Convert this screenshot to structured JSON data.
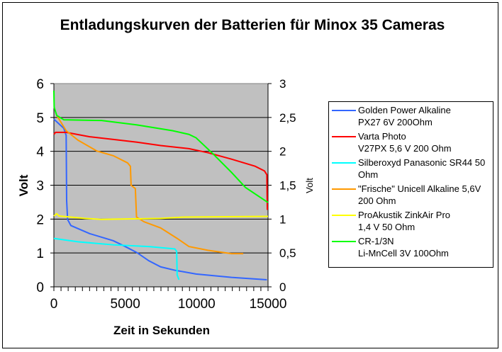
{
  "chart_data": {
    "type": "line",
    "title": "Entladungskurven der Batterien für Minox 35 Cameras",
    "xlabel": "Zeit in Sekunden",
    "ylabel": "Volt",
    "y2label": "Volt",
    "xlim": [
      0,
      15000
    ],
    "ylim": [
      0,
      6
    ],
    "y2lim": [
      0,
      3
    ],
    "xticks": [
      "0",
      "5000",
      "10000",
      "15000"
    ],
    "xtick_values": [
      0,
      5000,
      10000,
      15000
    ],
    "yticks": [
      "0",
      "1",
      "2",
      "3",
      "4",
      "5",
      "6"
    ],
    "y2ticks": [
      "0",
      "0,5",
      "1",
      "1,5",
      "2",
      "2,5",
      "3"
    ],
    "grid": true,
    "plot_background": "#c0c0c0",
    "legend_position": "right",
    "series": [
      {
        "name": "Golden Power Alkaline PX27 6V 200Ohm",
        "label_lines": [
          "Golden Power Alkaline",
          "PX27 6V 200Ohm"
        ],
        "color": "#3366ff",
        "axis": "left",
        "x": [
          0,
          695,
          860,
          893,
          960,
          1190,
          2514,
          4168,
          4995,
          5822,
          6649,
          7476,
          8468,
          9957,
          12438,
          14919
        ],
        "y": [
          4.95,
          4.68,
          4.47,
          2.55,
          1.99,
          1.81,
          1.57,
          1.36,
          1.19,
          1.01,
          0.77,
          0.59,
          0.49,
          0.38,
          0.28,
          0.21
        ]
      },
      {
        "name": "Varta Photo V27PX 5,6 V 200 Ohm",
        "label_lines": [
          "Varta Photo",
          "V27PX 5,6 V 200 Ohm"
        ],
        "color": "#ff0000",
        "axis": "left",
        "x": [
          0,
          116,
          860,
          2514,
          4168,
          5822,
          7476,
          9461,
          10784,
          12438,
          14092,
          14754,
          14919,
          14952
        ],
        "y": [
          4.5,
          4.56,
          4.56,
          4.43,
          4.35,
          4.27,
          4.17,
          4.08,
          3.96,
          3.77,
          3.56,
          3.42,
          3.31,
          2.27
        ]
      },
      {
        "name": "Silberoxyd Panasonic SR44 50 Ohm",
        "label_lines": [
          "Silberoxyd Panasonic SR44 50",
          "Ohm"
        ],
        "color": "#00ffff",
        "axis": "left",
        "x": [
          0,
          1687,
          4168,
          6649,
          8468,
          8601,
          8634,
          8766
        ],
        "y": [
          1.43,
          1.33,
          1.24,
          1.19,
          1.12,
          1.05,
          0.35,
          0.21
        ]
      },
      {
        "name": "\"Frische\" Unicell Alkaline 5,6V 200 Ohm",
        "label_lines": [
          "\"Frische\" Unicell Alkaline 5,6V",
          "200 Ohm"
        ],
        "color": "#ff9900",
        "axis": "left",
        "x": [
          198,
          860,
          1687,
          3010,
          4168,
          5160,
          5359,
          5409,
          5706,
          5789,
          6318,
          7476,
          8634,
          9461,
          10784,
          12438,
          13265
        ],
        "y": [
          5.06,
          4.61,
          4.33,
          4.01,
          3.87,
          3.66,
          3.56,
          3.0,
          2.9,
          2.06,
          1.92,
          1.74,
          1.43,
          1.19,
          1.08,
          0.98,
          0.98
        ]
      },
      {
        "name": "ProAkustik ZinkAir Pro 1,4 V 50 Ohm",
        "label_lines": [
          "ProAkustik ZinkAir Pro",
          "1,4 V 50 Ohm"
        ],
        "color": "#ffff00",
        "axis": "right",
        "x": [
          0,
          198,
          364,
          2183,
          3341,
          7476,
          9130,
          15000
        ],
        "y": [
          1.045,
          1.08,
          1.045,
          1.01,
          0.995,
          1.01,
          1.03,
          1.04
        ]
      },
      {
        "name": "CR-1/3N Li-MnCell 3V 100Ohm",
        "label_lines": [
          "CR-1/3N",
          "Li-MnCell 3V 100Ohm"
        ],
        "color": "#00ff00",
        "axis": "left",
        "x": [
          0,
          20,
          198,
          695,
          3341,
          5822,
          8303,
          9461,
          9957,
          11115,
          12438,
          13430,
          15000
        ],
        "y": [
          5.79,
          5.3,
          5.06,
          4.93,
          4.91,
          4.78,
          4.61,
          4.5,
          4.4,
          3.94,
          3.38,
          2.93,
          2.49
        ]
      }
    ]
  }
}
